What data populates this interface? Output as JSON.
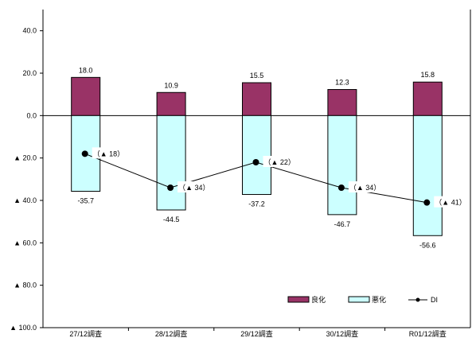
{
  "chart_data": {
    "type": "bar",
    "categories": [
      "27/12調査",
      "28/12調査",
      "29/12調査",
      "30/12調査",
      "R01/12調査"
    ],
    "series": [
      {
        "name": "良化",
        "type": "bar",
        "values": [
          18.0,
          10.9,
          15.5,
          12.3,
          15.8
        ],
        "color": "#993366"
      },
      {
        "name": "悪化",
        "type": "bar",
        "values": [
          -35.7,
          -44.5,
          -37.2,
          -46.7,
          -56.6
        ],
        "color": "#CCFFFF"
      },
      {
        "name": "DI",
        "type": "line",
        "values": [
          -18,
          -34,
          -22,
          -34,
          -41
        ],
        "color": "#000000"
      }
    ],
    "bar_labels": {
      "good": [
        "18.0",
        "10.9",
        "15.5",
        "12.3",
        "15.8"
      ],
      "bad": [
        "-35.7",
        "-44.5",
        "-37.2",
        "-46.7",
        "-56.6"
      ]
    },
    "di_labels": [
      "（▲ 18）",
      "（▲ 34）",
      "（▲ 22）",
      "（▲ 34）",
      "（▲ 41）"
    ],
    "y_ticks": [
      {
        "value": 40,
        "label": "40.0"
      },
      {
        "value": 20,
        "label": "20.0"
      },
      {
        "value": 0,
        "label": "0.0"
      },
      {
        "value": -20,
        "label": "▲ 20.0"
      },
      {
        "value": -40,
        "label": "▲ 40.0"
      },
      {
        "value": -60,
        "label": "▲ 60.0"
      },
      {
        "value": -80,
        "label": "▲ 80.0"
      },
      {
        "value": -100,
        "label": "▲ 100.0"
      }
    ],
    "ylim": [
      -100,
      50
    ],
    "grid": false,
    "legend_position": "bottom-right",
    "legend": [
      "良化",
      "悪化",
      "DI"
    ]
  }
}
